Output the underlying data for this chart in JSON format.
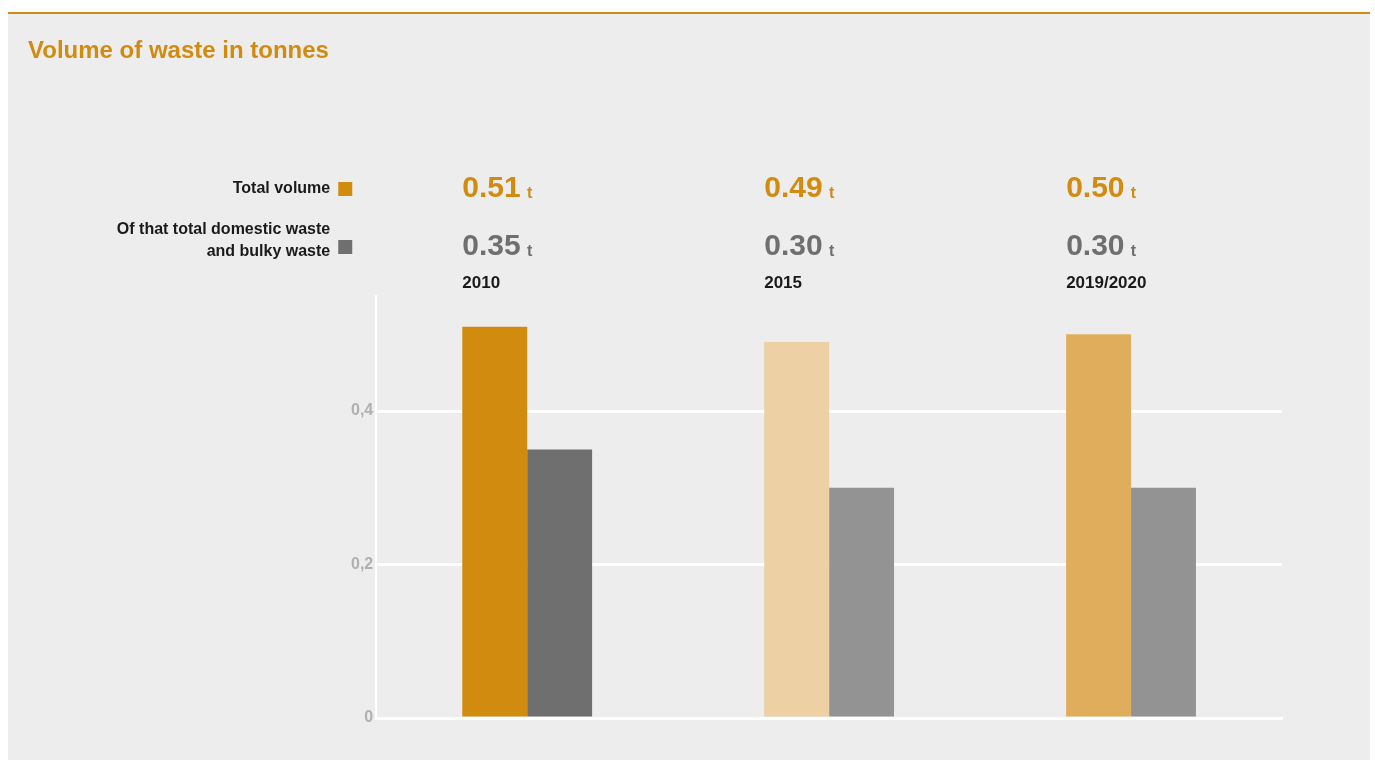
{
  "chart_data": {
    "type": "bar",
    "title": "Volume of waste in tonnes",
    "categories": [
      "2010",
      "2015",
      "2019/2020"
    ],
    "series": [
      {
        "name": "Total volume",
        "colors": [
          "#d18b0f",
          "#edd0a3",
          "#e0ad5c"
        ],
        "values": [
          0.51,
          0.49,
          0.5
        ],
        "value_labels": [
          "0.51 t",
          "0.49 t",
          "0.50 t"
        ]
      },
      {
        "name": "Of that total domestic waste and bulky waste",
        "colors": [
          "#6f6f6f",
          "#939393",
          "#939393"
        ],
        "values": [
          0.35,
          0.3,
          0.3
        ],
        "value_labels": [
          "0.35 t",
          "0.30 t",
          "0.30 t"
        ]
      }
    ],
    "ylim": [
      0,
      0.55
    ],
    "yticks": [
      0,
      {
        "value": 0.2,
        "label": "0,2"
      },
      {
        "value": 0.4,
        "label": "0,4"
      }
    ],
    "grid": "y",
    "legend": "top left"
  }
}
